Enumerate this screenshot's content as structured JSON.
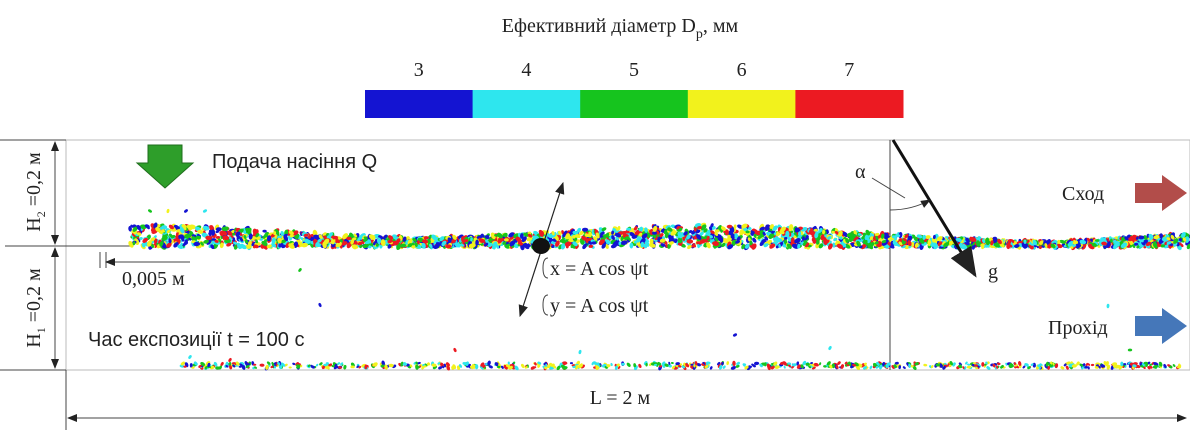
{
  "title": {
    "text": "Ефективний діаметр D",
    "sub": "p",
    "tail": ", мм"
  },
  "colorbar": {
    "labels": [
      3,
      4,
      5,
      6,
      7
    ],
    "colors": [
      "#1414d2",
      "#2ee6ee",
      "#16c41e",
      "#f2f21c",
      "#ec1a22"
    ]
  },
  "feed": "Подача насіння Q",
  "h2": {
    "text": "H",
    "sub": "2",
    "tail": " =0,2 м"
  },
  "h1": {
    "text": "H",
    "sub": "1",
    "tail": " =0,2 м"
  },
  "gap": "0,005 м",
  "oscillation": {
    "x": "x = A cos ψt",
    "y": "y = A cos ψt"
  },
  "angle": "α",
  "gravity": "g",
  "outlet_top": "Сход",
  "outlet_bottom": "Прохід",
  "time": "Час експозиції t = 100 с",
  "length": "L = 2 м"
}
